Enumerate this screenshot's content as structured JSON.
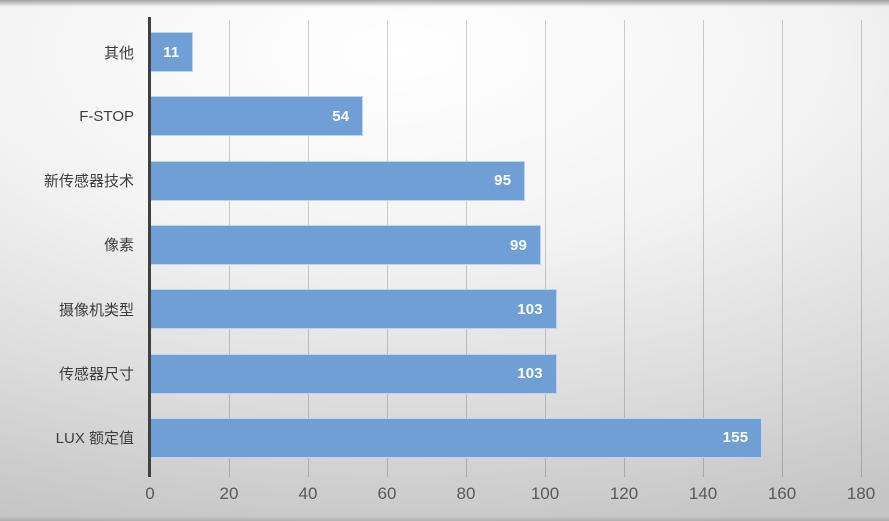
{
  "chart_data": {
    "type": "bar",
    "orientation": "horizontal",
    "title": "",
    "categories": [
      "其他",
      "F-STOP",
      "新传感器技术",
      "像素",
      "摄像机类型",
      "传感器尺寸",
      "LUX 额定值"
    ],
    "values": [
      11,
      54,
      95,
      99,
      103,
      103,
      155
    ],
    "xlabel": "",
    "ylabel": "",
    "xlim": [
      0,
      180
    ],
    "xticks": [
      0,
      20,
      40,
      60,
      80,
      100,
      120,
      140,
      160,
      180
    ],
    "grid": true,
    "legend": false,
    "data_labels_shown": true,
    "colors": {
      "bar_fill": "#6f9fd5",
      "bar_border": "rgba(255,255,255,0.55)",
      "value_label": "#ffffff",
      "axis_line": "#404040",
      "gridline": "rgba(0,0,0,0.18)",
      "category_label": "#3d3d3d",
      "tick_label": "#595959"
    }
  }
}
